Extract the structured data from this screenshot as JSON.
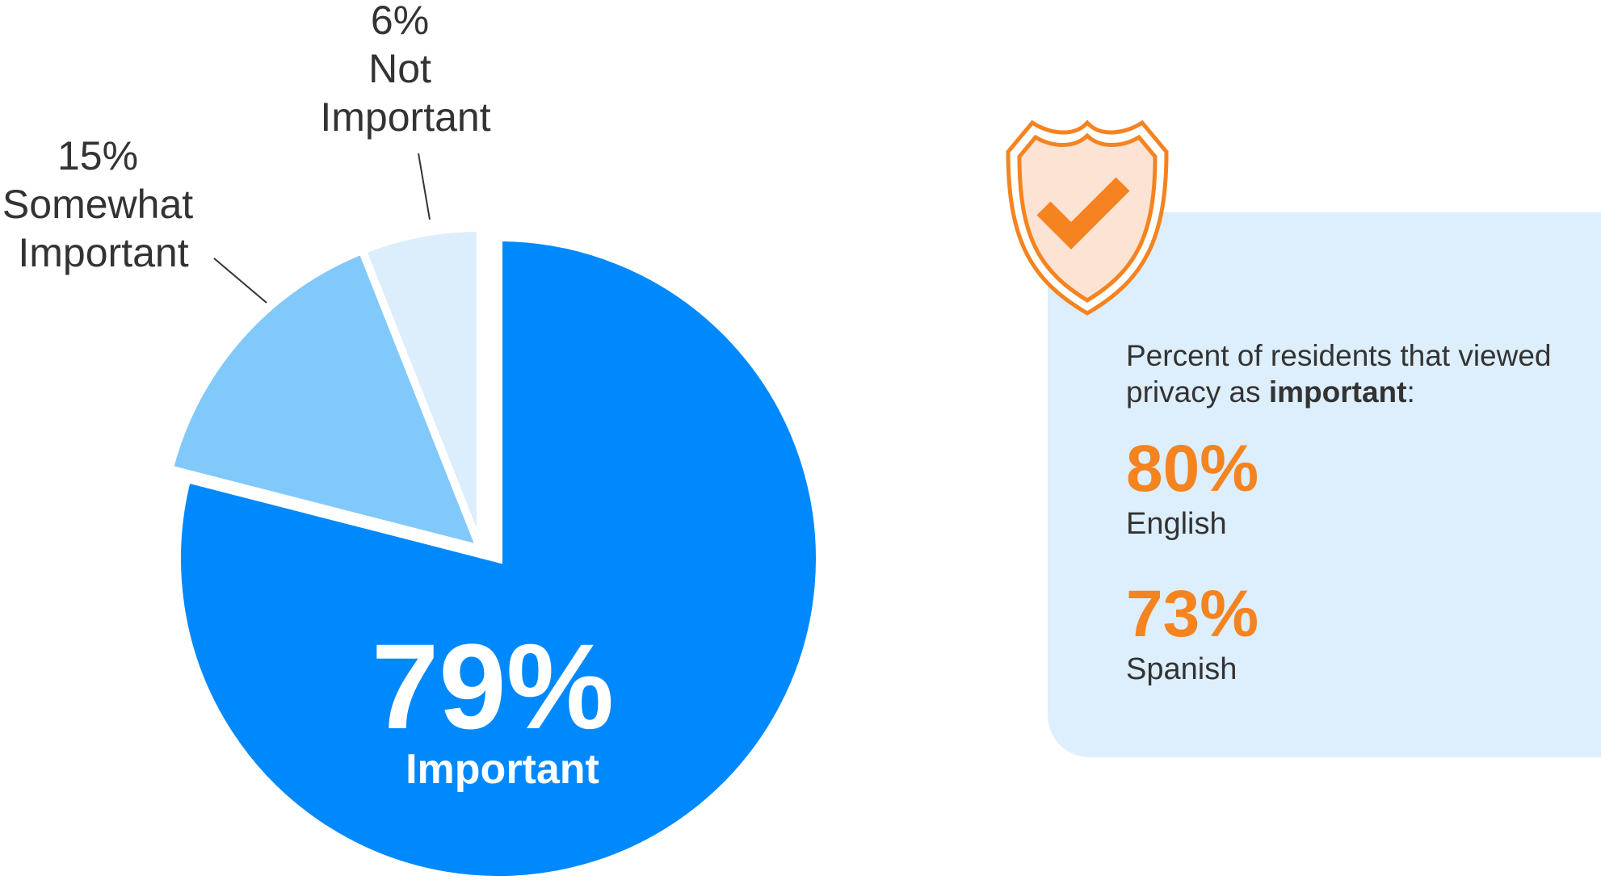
{
  "chart_data": {
    "type": "pie",
    "slices": [
      {
        "label": "Important",
        "value": 79,
        "display": "79%",
        "color": "#0089fc"
      },
      {
        "label": "Somewhat Important",
        "value": 15,
        "display": "15%",
        "color": "#82c9fb",
        "label_lines": [
          "15%",
          "Somewhat",
          "Important"
        ]
      },
      {
        "label": "Not Important",
        "value": 6,
        "display": "6%",
        "color": "#dcedfc",
        "label_lines": [
          "6%",
          "Not",
          "Important"
        ]
      }
    ],
    "main_value": "79%",
    "main_label": "Important"
  },
  "info_card": {
    "intro_prefix": "Percent of residents that viewed privacy as ",
    "intro_bold": "important",
    "intro_suffix": ":",
    "stats": [
      {
        "value": "80%",
        "label": "English"
      },
      {
        "value": "73%",
        "label": "Spanish"
      }
    ],
    "accent_color": "#f5831f",
    "icon": "shield-check-icon"
  }
}
